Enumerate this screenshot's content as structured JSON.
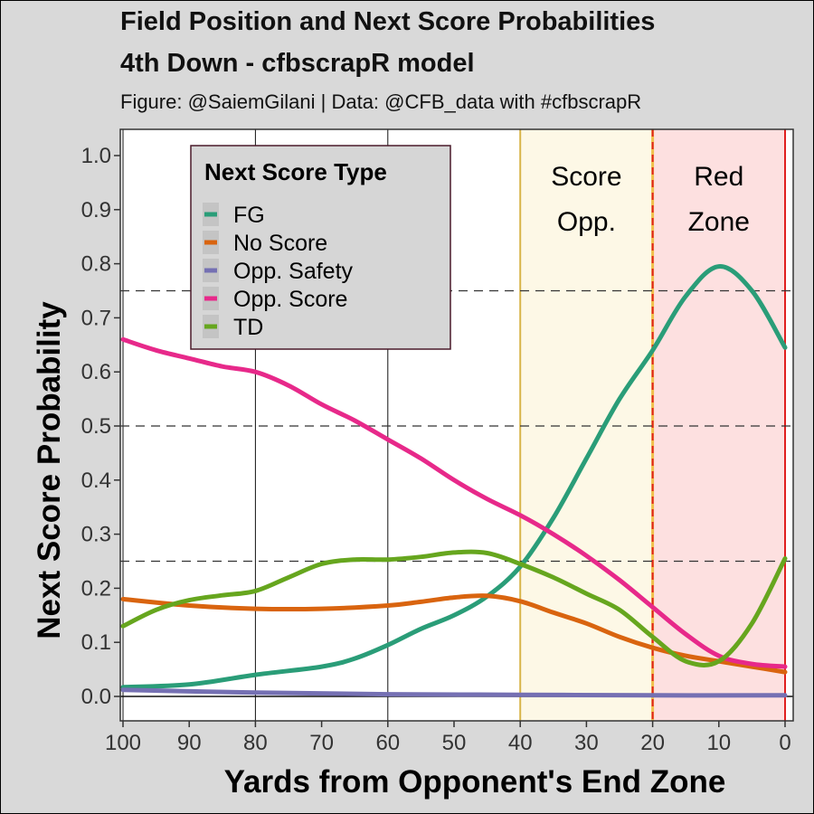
{
  "header": {
    "title_line1": "Field Position and Next Score Probabilities",
    "title_line2": "4th Down - cfbscrapR model",
    "subtitle": "Figure: @SaiemGilani | Data: @CFB_data with #cfbscrapR"
  },
  "chart_data": {
    "type": "line",
    "xlabel": "Yards from Opponent's End Zone",
    "ylabel": "Next Score Probability",
    "xlim": [
      100,
      0
    ],
    "ylim": [
      0,
      1.0
    ],
    "x_reversed": true,
    "x_ticks": [
      "100",
      "90",
      "80",
      "70",
      "60",
      "50",
      "40",
      "30",
      "20",
      "10",
      "0"
    ],
    "y_ticks": [
      "0.0",
      "0.1",
      "0.2",
      "0.3",
      "0.4",
      "0.5",
      "0.6",
      "0.7",
      "0.8",
      "0.9",
      "1.0"
    ],
    "reference_lines_y": [
      0.25,
      0.5,
      0.75
    ],
    "zones": [
      {
        "label_lines": [
          "Score",
          "Opp."
        ],
        "from": 40,
        "to": 20,
        "color": "#fdf8e6"
      },
      {
        "label_lines": [
          "Red",
          "Zone"
        ],
        "from": 20,
        "to": 0,
        "color": "#fde0e0"
      }
    ],
    "legend": {
      "title": "Next Score Type",
      "position": "top-left"
    },
    "series": [
      {
        "name": "FG",
        "color": "#2a9d78",
        "x": [
          100,
          90,
          80,
          70,
          65,
          60,
          55,
          50,
          45,
          40,
          35,
          30,
          25,
          20,
          15,
          10,
          5,
          0
        ],
        "y": [
          0.017,
          0.022,
          0.04,
          0.055,
          0.07,
          0.095,
          0.125,
          0.15,
          0.185,
          0.24,
          0.33,
          0.44,
          0.55,
          0.64,
          0.74,
          0.795,
          0.75,
          0.645
        ]
      },
      {
        "name": "No Score",
        "color": "#d9640f",
        "x": [
          100,
          90,
          80,
          70,
          60,
          55,
          50,
          45,
          40,
          35,
          30,
          25,
          20,
          15,
          10,
          5,
          0
        ],
        "y": [
          0.18,
          0.168,
          0.162,
          0.162,
          0.168,
          0.175,
          0.183,
          0.186,
          0.176,
          0.155,
          0.135,
          0.11,
          0.09,
          0.075,
          0.065,
          0.055,
          0.045
        ]
      },
      {
        "name": "Opp. Safety",
        "color": "#7570b3",
        "x": [
          100,
          80,
          60,
          40,
          20,
          0
        ],
        "y": [
          0.012,
          0.007,
          0.004,
          0.003,
          0.002,
          0.002
        ]
      },
      {
        "name": "Opp. Score",
        "color": "#e7298a",
        "x": [
          100,
          95,
          90,
          85,
          80,
          75,
          70,
          65,
          60,
          55,
          50,
          45,
          40,
          35,
          30,
          25,
          20,
          15,
          10,
          5,
          0
        ],
        "y": [
          0.66,
          0.64,
          0.625,
          0.61,
          0.6,
          0.575,
          0.54,
          0.51,
          0.475,
          0.44,
          0.4,
          0.365,
          0.335,
          0.3,
          0.26,
          0.215,
          0.165,
          0.115,
          0.075,
          0.06,
          0.055
        ]
      },
      {
        "name": "TD",
        "color": "#66a61e",
        "x": [
          100,
          95,
          90,
          85,
          80,
          75,
          70,
          65,
          60,
          55,
          50,
          45,
          40,
          35,
          30,
          25,
          20,
          15,
          10,
          5,
          0
        ],
        "y": [
          0.13,
          0.16,
          0.178,
          0.187,
          0.195,
          0.22,
          0.245,
          0.253,
          0.253,
          0.258,
          0.266,
          0.265,
          0.245,
          0.22,
          0.19,
          0.16,
          0.11,
          0.065,
          0.065,
          0.135,
          0.255
        ]
      }
    ]
  }
}
